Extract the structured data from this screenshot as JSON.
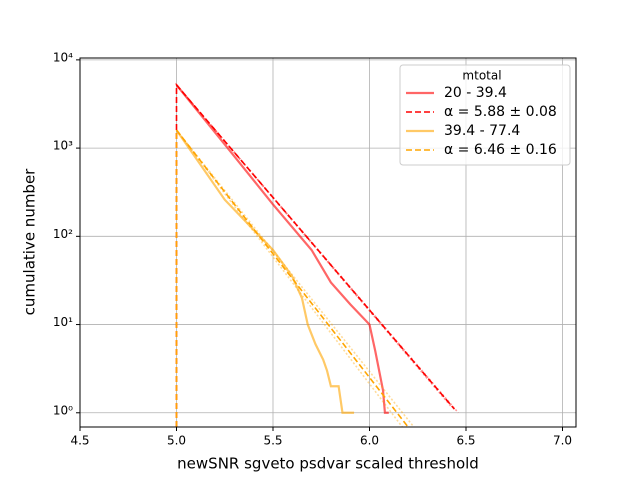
{
  "chart_data": {
    "type": "line",
    "xlabel": "newSNR sgveto psdvar scaled threshold",
    "ylabel": "cumulative number",
    "xlim": [
      4.5,
      7.07
    ],
    "ylim": [
      0.69,
      10500
    ],
    "yscale": "log",
    "grid": true,
    "legend_loc": "upper right",
    "legend_title": "mtotal",
    "xticks": [
      4.5,
      {
        "value": 5,
        "label": "5.0"
      },
      5.5,
      {
        "value": 6,
        "label": "6.0"
      },
      6.5,
      {
        "value": 7,
        "label": "7.0"
      }
    ],
    "yticks": [
      {
        "value": 1,
        "label": "10⁰"
      },
      {
        "value": 10,
        "label": "10¹"
      },
      {
        "value": 100,
        "label": "10²"
      },
      {
        "value": 1000,
        "label": "10³"
      },
      {
        "value": 10000,
        "label": "10⁴"
      }
    ],
    "series": [
      {
        "name": "20 - 39.4",
        "color": "#ff0000",
        "alpha": 0.6,
        "style": "solid",
        "x": [
          5.0,
          5.25,
          5.5,
          5.7,
          5.8,
          5.9,
          6.0,
          6.03,
          6.07,
          6.08,
          6.1
        ],
        "values": [
          5200,
          1100,
          230,
          70,
          30,
          17,
          10,
          5,
          1.8,
          1,
          1
        ]
      },
      {
        "name": "α = 5.88 ± 0.08",
        "color": "#ff0000",
        "alpha": 1,
        "style": "dashed",
        "x": [
          5.0,
          5.0,
          6.44
        ],
        "values": [
          0.69,
          5200,
          1.1
        ]
      },
      {
        "color": "#ff0000",
        "alpha": 0.4,
        "style": "dotted",
        "x": [
          5.0,
          6.46
        ],
        "values": [
          5200,
          1.0
        ]
      },
      {
        "color": "#ff0000",
        "alpha": 0.4,
        "style": "dotted",
        "x": [
          5.0,
          6.42
        ],
        "values": [
          5200,
          1.2
        ]
      },
      {
        "name": "39.4 - 77.4",
        "color": "#ffa500",
        "alpha": 0.6,
        "style": "solid",
        "x": [
          5.0,
          5.25,
          5.5,
          5.6,
          5.65,
          5.68,
          5.72,
          5.76,
          5.78,
          5.8,
          5.84,
          5.86,
          5.92
        ],
        "values": [
          1600,
          260,
          70,
          35,
          20,
          10,
          6,
          4,
          3,
          2,
          2,
          1,
          1
        ]
      },
      {
        "name": "α = 6.46 ± 0.16",
        "color": "#ffa500",
        "alpha": 1,
        "style": "dashed",
        "x": [
          5.0,
          5.0,
          6.2
        ],
        "values": [
          0.69,
          1600,
          0.69
        ]
      },
      {
        "color": "#ffa500",
        "alpha": 0.4,
        "style": "dotted",
        "x": [
          5.0,
          6.23
        ],
        "values": [
          1600,
          0.69
        ]
      },
      {
        "color": "#ffa500",
        "alpha": 0.4,
        "style": "dotted",
        "x": [
          5.0,
          6.17
        ],
        "values": [
          1600,
          0.69
        ]
      }
    ]
  }
}
